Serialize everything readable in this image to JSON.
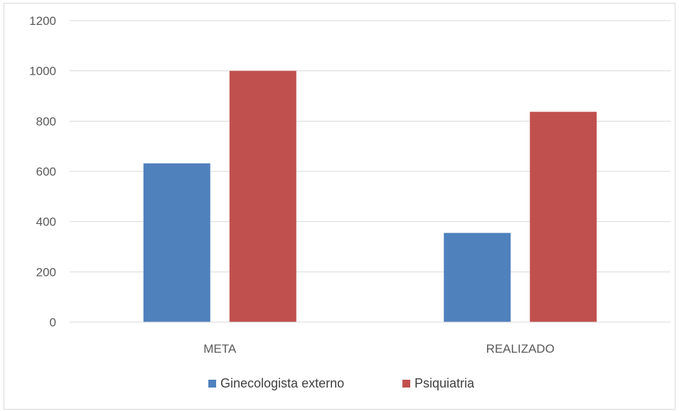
{
  "chart_data": {
    "type": "bar",
    "categories": [
      "META",
      "REALIZADO"
    ],
    "series": [
      {
        "name": "Ginecologista externo",
        "values": [
          632,
          355
        ],
        "color": "#4f81bd"
      },
      {
        "name": "Psiquiatria",
        "values": [
          1000,
          837
        ],
        "color": "#c0504d"
      }
    ],
    "ylim": [
      0,
      1200
    ],
    "yticks": [
      0,
      200,
      400,
      600,
      800,
      1000,
      1200
    ],
    "grid": true,
    "legend_position": "bottom"
  }
}
